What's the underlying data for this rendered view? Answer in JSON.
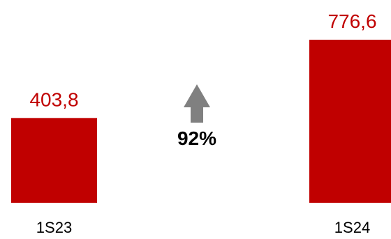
{
  "chart_data": {
    "type": "bar",
    "categories": [
      "1S23",
      "1S24"
    ],
    "values": [
      403.8,
      776.6
    ],
    "value_labels": [
      "403,8",
      "776,6"
    ],
    "title": "",
    "xlabel": "",
    "ylabel": "",
    "ylim": [
      0,
      850
    ],
    "grid": false,
    "legend": "none",
    "annotation": {
      "text": "92%",
      "icon": "up-arrow-icon"
    }
  },
  "colors": {
    "bar": "#c00000",
    "value_label": "#c00000",
    "arrow": "#808080",
    "text": "#000000"
  }
}
